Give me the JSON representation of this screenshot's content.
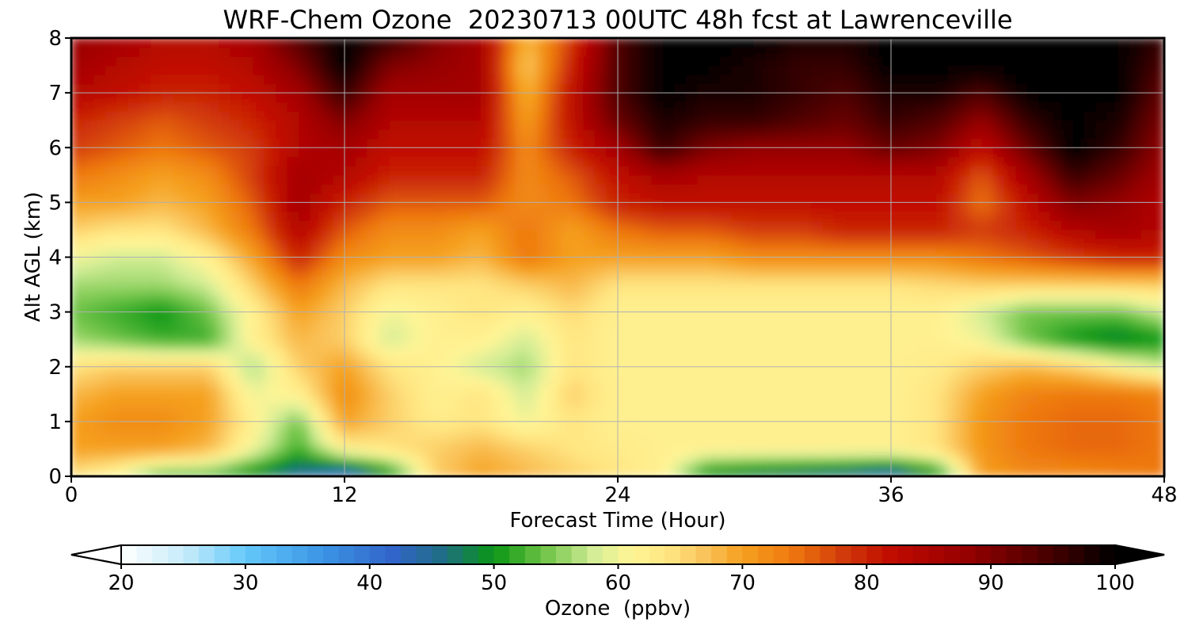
{
  "chart_data": {
    "type": "heatmap",
    "title": "WRF-Chem Ozone  20230713 00UTC 48h fcst at Lawrenceville",
    "xlabel": "Forecast Time (Hour)",
    "ylabel": "Alt AGL (km)",
    "xlim": [
      0,
      48
    ],
    "ylim": [
      0,
      8
    ],
    "xticks": [
      0,
      12,
      24,
      36,
      48
    ],
    "yticks": [
      0,
      1,
      2,
      3,
      4,
      5,
      6,
      7,
      8
    ],
    "grid": true,
    "colorbar": {
      "label": "Ozone  (ppbv)",
      "range": [
        20,
        100
      ],
      "ticks": [
        20,
        30,
        40,
        50,
        60,
        70,
        80,
        90,
        100
      ],
      "extend": "both",
      "orientation": "horizontal",
      "colors": [
        {
          "value": 20,
          "color": "#ffffff"
        },
        {
          "value": 25,
          "color": "#c8ecfa"
        },
        {
          "value": 30,
          "color": "#64c8fa"
        },
        {
          "value": 36,
          "color": "#3c96e6"
        },
        {
          "value": 42,
          "color": "#3264c8"
        },
        {
          "value": 46,
          "color": "#1e6e82"
        },
        {
          "value": 50,
          "color": "#0a9614"
        },
        {
          "value": 54,
          "color": "#6ec346"
        },
        {
          "value": 58,
          "color": "#d2ed96"
        },
        {
          "value": 61,
          "color": "#fff596"
        },
        {
          "value": 64,
          "color": "#ffe682"
        },
        {
          "value": 67,
          "color": "#fac35a"
        },
        {
          "value": 70,
          "color": "#f5a01e"
        },
        {
          "value": 74,
          "color": "#ee780f"
        },
        {
          "value": 78,
          "color": "#d23c0a"
        },
        {
          "value": 82,
          "color": "#c00a00"
        },
        {
          "value": 88,
          "color": "#960000"
        },
        {
          "value": 94,
          "color": "#500000"
        },
        {
          "value": 100,
          "color": "#000000"
        }
      ]
    },
    "grid_x": [
      0,
      2,
      4,
      6,
      8,
      10,
      12,
      14,
      16,
      18,
      20,
      22,
      24,
      26,
      28,
      30,
      32,
      34,
      36,
      38,
      40,
      42,
      44,
      46,
      48
    ],
    "grid_y": [
      0,
      0.5,
      1,
      1.5,
      2,
      2.5,
      3,
      3.5,
      4,
      4.5,
      5,
      5.5,
      6,
      6.5,
      7,
      7.5,
      8
    ],
    "values": [
      [
        64,
        60,
        52,
        52,
        48,
        44,
        40,
        48,
        66,
        70,
        68,
        66,
        64,
        62,
        48,
        46,
        45,
        44,
        42,
        48,
        70,
        72,
        72,
        73,
        74
      ],
      [
        70,
        70,
        70,
        68,
        60,
        52,
        62,
        64,
        66,
        68,
        66,
        64,
        63,
        62,
        62,
        62,
        62,
        62,
        62,
        64,
        71,
        74,
        75,
        75,
        74
      ],
      [
        70,
        72,
        72,
        70,
        62,
        54,
        70,
        66,
        63,
        64,
        60,
        64,
        62,
        62,
        62,
        62,
        62,
        62,
        62,
        64,
        71,
        74,
        75,
        75,
        74
      ],
      [
        68,
        70,
        70,
        70,
        60,
        62,
        72,
        66,
        62,
        64,
        58,
        66,
        62,
        62,
        62,
        62,
        62,
        62,
        62,
        64,
        70,
        73,
        74,
        74,
        73
      ],
      [
        64,
        66,
        66,
        66,
        56,
        66,
        70,
        64,
        62,
        58,
        56,
        64,
        62,
        62,
        62,
        62,
        62,
        62,
        62,
        63,
        66,
        68,
        66,
        62,
        58
      ],
      [
        56,
        54,
        52,
        52,
        62,
        68,
        66,
        58,
        62,
        62,
        58,
        64,
        62,
        62,
        62,
        62,
        62,
        62,
        62,
        62,
        60,
        54,
        50,
        48,
        50
      ],
      [
        54,
        52,
        50,
        54,
        62,
        70,
        66,
        60,
        62,
        64,
        62,
        65,
        62,
        62,
        62,
        62,
        62,
        62,
        62,
        62,
        58,
        54,
        54,
        54,
        58
      ],
      [
        56,
        56,
        56,
        58,
        66,
        74,
        68,
        64,
        64,
        64,
        66,
        68,
        64,
        64,
        64,
        64,
        64,
        64,
        64,
        65,
        66,
        66,
        66,
        66,
        66
      ],
      [
        60,
        58,
        58,
        62,
        70,
        80,
        72,
        70,
        70,
        68,
        74,
        70,
        70,
        70,
        70,
        72,
        72,
        72,
        72,
        72,
        74,
        76,
        78,
        80,
        80
      ],
      [
        66,
        64,
        64,
        68,
        74,
        84,
        76,
        72,
        72,
        70,
        74,
        70,
        74,
        76,
        76,
        78,
        78,
        80,
        80,
        80,
        78,
        80,
        84,
        86,
        84
      ],
      [
        70,
        70,
        68,
        70,
        76,
        86,
        80,
        76,
        76,
        76,
        72,
        74,
        80,
        82,
        82,
        82,
        82,
        82,
        82,
        82,
        74,
        82,
        90,
        88,
        84
      ],
      [
        74,
        72,
        70,
        72,
        78,
        86,
        84,
        80,
        80,
        80,
        72,
        76,
        82,
        86,
        84,
        84,
        84,
        84,
        84,
        84,
        76,
        86,
        96,
        92,
        86
      ],
      [
        78,
        76,
        74,
        76,
        78,
        84,
        86,
        82,
        82,
        82,
        72,
        80,
        86,
        96,
        90,
        88,
        88,
        88,
        92,
        90,
        82,
        92,
        100,
        96,
        88
      ],
      [
        80,
        78,
        76,
        78,
        80,
        84,
        90,
        84,
        84,
        84,
        70,
        82,
        92,
        98,
        96,
        96,
        94,
        92,
        96,
        94,
        88,
        96,
        100,
        98,
        90
      ],
      [
        84,
        82,
        80,
        80,
        82,
        86,
        96,
        86,
        86,
        86,
        68,
        82,
        94,
        100,
        98,
        98,
        96,
        94,
        98,
        98,
        94,
        100,
        100,
        100,
        92
      ],
      [
        86,
        84,
        82,
        82,
        84,
        90,
        100,
        90,
        88,
        86,
        66,
        80,
        94,
        100,
        100,
        98,
        96,
        96,
        100,
        100,
        100,
        100,
        100,
        100,
        94
      ],
      [
        88,
        86,
        84,
        84,
        86,
        94,
        100,
        96,
        90,
        86,
        68,
        78,
        94,
        100,
        100,
        100,
        98,
        98,
        100,
        100,
        100,
        100,
        100,
        100,
        96
      ]
    ]
  }
}
